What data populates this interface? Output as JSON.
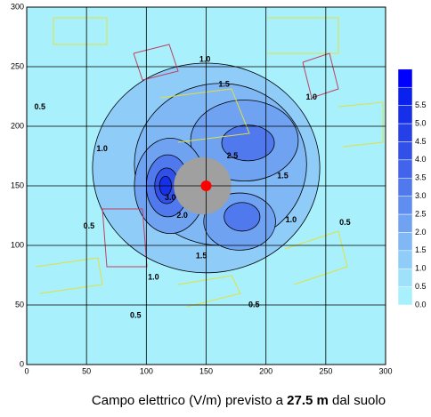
{
  "chart_data": {
    "type": "contour",
    "xlim": [
      0,
      300
    ],
    "ylim": [
      0,
      300
    ],
    "xticks": [
      0,
      50,
      100,
      150,
      200,
      250,
      300
    ],
    "yticks": [
      0,
      50,
      100,
      150,
      200,
      250,
      300
    ],
    "grid": true,
    "source": {
      "x": 150,
      "y": 150,
      "color": "#ff0000"
    },
    "colorbar": {
      "levels": [
        {
          "value": 0,
          "label": "0.0"
        },
        0.5,
        {
          "value": 1,
          "label": "1.0"
        },
        1.5,
        {
          "value": 2,
          "label": "2.0"
        },
        2.5,
        {
          "value": 3,
          "label": "3.0"
        },
        3.5,
        {
          "value": 4,
          "label": "4.0"
        },
        4.5,
        {
          "value": 5,
          "label": "5.0"
        },
        5.5
      ],
      "colors": [
        "#a8f0fc",
        "#9fe0fb",
        "#8fcdf8",
        "#7fb8f5",
        "#6fa3f2",
        "#608ef0",
        "#5079ed",
        "#4164ea",
        "#3150e7",
        "#2540e6",
        "#1530e8",
        "#0a20ee",
        "#0000ff"
      ]
    },
    "regions": [
      {
        "level": 1,
        "cx": 150,
        "cy": 165,
        "rx": 95,
        "ry": 88
      },
      {
        "level": 1.5,
        "cx": 162,
        "cy": 168,
        "rx": 72,
        "ry": 68
      },
      {
        "level": 2,
        "cx": 182,
        "cy": 188,
        "rx": 45,
        "ry": 34
      },
      {
        "level": 2,
        "cx": 120,
        "cy": 150,
        "rx": 30,
        "ry": 40
      },
      {
        "level": 2,
        "cx": 178,
        "cy": 120,
        "rx": 30,
        "ry": 24
      },
      {
        "level": 3,
        "cx": 118,
        "cy": 150,
        "rx": 18,
        "ry": 26
      },
      {
        "level": 3,
        "cx": 185,
        "cy": 186,
        "rx": 22,
        "ry": 15
      },
      {
        "level": 3,
        "cx": 180,
        "cy": 124,
        "rx": 15,
        "ry": 12
      },
      {
        "level": 4,
        "cx": 117,
        "cy": 150,
        "rx": 10,
        "ry": 15
      },
      {
        "level": 5,
        "cx": 116,
        "cy": 150,
        "rx": 5,
        "ry": 8
      }
    ],
    "exclusion": {
      "cx": 147,
      "cy": 150,
      "r": 24,
      "color": "#a0a0a0"
    },
    "annotations": [
      {
        "text": "1.0",
        "x": 149,
        "y": 256
      },
      {
        "text": "0.5",
        "x": 11,
        "y": 216
      },
      {
        "text": "1.0",
        "x": 238,
        "y": 224
      },
      {
        "text": "1.5",
        "x": 165,
        "y": 235
      },
      {
        "text": "1.0",
        "x": 63,
        "y": 181
      },
      {
        "text": "1.5",
        "x": 214,
        "y": 158
      },
      {
        "text": "1.0",
        "x": 221,
        "y": 121
      },
      {
        "text": "0.5",
        "x": 266,
        "y": 119
      },
      {
        "text": "0.5",
        "x": 52,
        "y": 116
      },
      {
        "text": "1.0",
        "x": 106,
        "y": 73
      },
      {
        "text": "1.5",
        "x": 146,
        "y": 91
      },
      {
        "text": "0.5",
        "x": 190,
        "y": 50
      },
      {
        "text": "0.5",
        "x": 91,
        "y": 41
      },
      {
        "text": "2.0",
        "x": 130,
        "y": 125
      },
      {
        "text": "2.5",
        "x": 172,
        "y": 175
      },
      {
        "text": "3.0",
        "x": 120,
        "y": 140
      }
    ],
    "caption": {
      "prefix": "Campo elettrico (V/m) previsto a ",
      "height": "27.5 m",
      "suffix": " dal suolo"
    }
  }
}
